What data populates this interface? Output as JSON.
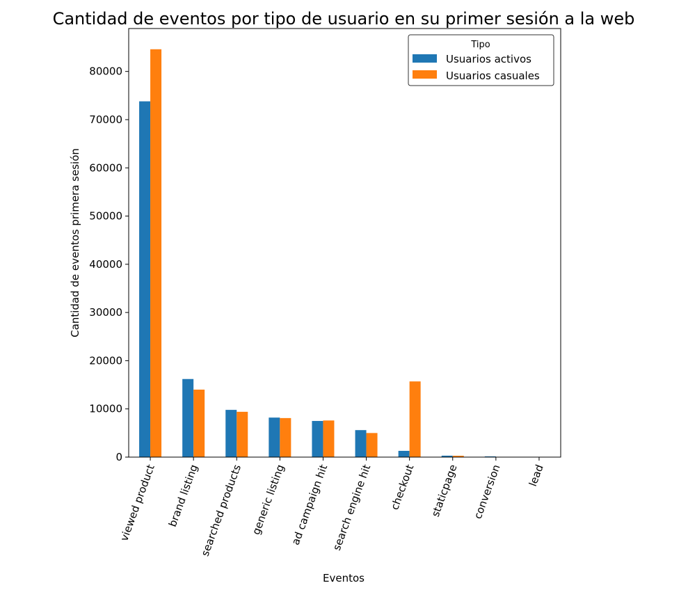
{
  "chart_data": {
    "type": "bar",
    "title": "Cantidad de eventos por tipo de usuario en su primer sesión a la web",
    "xlabel": "Eventos",
    "ylabel": "Cantidad de eventos primera sesión",
    "categories": [
      "viewed product",
      "brand listing",
      "searched products",
      "generic listing",
      "ad campaign hit",
      "search engine hit",
      "checkout",
      "staticpage",
      "conversion",
      "lead"
    ],
    "series": [
      {
        "name": "Usuarios activos",
        "color": "#1f77b4",
        "values": [
          73800,
          16200,
          9800,
          8200,
          7500,
          5600,
          1300,
          300,
          150,
          20
        ]
      },
      {
        "name": "Usuarios casuales",
        "color": "#ff7f0e",
        "values": [
          84600,
          14000,
          9400,
          8100,
          7600,
          5000,
          15700,
          280,
          40,
          10
        ]
      }
    ],
    "yticks": [
      "0",
      "10000",
      "20000",
      "30000",
      "40000",
      "50000",
      "60000",
      "70000",
      "80000"
    ],
    "ylim": [
      0,
      88900
    ],
    "legend": {
      "title": "Tipo",
      "position": "top-right"
    },
    "grid": false
  }
}
